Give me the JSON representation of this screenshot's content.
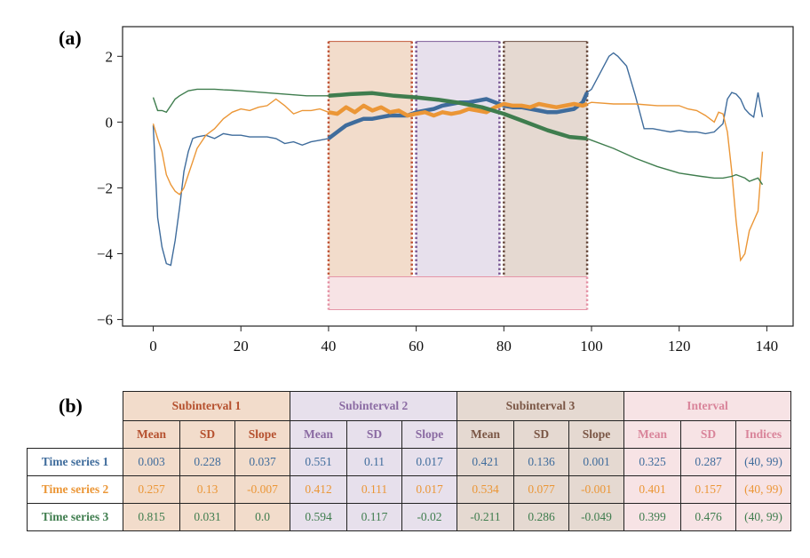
{
  "panel_a_label": "(a)",
  "panel_b_label": "(b)",
  "colors": {
    "series1": "#3f6c9c",
    "series2": "#eb9636",
    "series3": "#3f7d4e",
    "sub1_fill": "#f2dccb",
    "sub1_text": "#b5502e",
    "sub1_border": "#c0573a",
    "sub2_fill": "#e7e0ec",
    "sub2_text": "#8a6aa2",
    "sub2_border": "#7b5a96",
    "sub3_fill": "#e5d9d1",
    "sub3_text": "#7a5645",
    "sub3_border": "#6b4d40",
    "int_fill": "#f7e3e5",
    "int_text": "#d9849a",
    "int_border": "#e596a8"
  },
  "chart_data": {
    "type": "line",
    "xlim": [
      -7,
      146
    ],
    "ylim": [
      -6.2,
      2.9
    ],
    "x_ticks": [
      0,
      20,
      40,
      60,
      80,
      100,
      120,
      140
    ],
    "y_ticks": [
      2,
      0,
      -2,
      -4,
      -6
    ],
    "x_tick_labels": [
      "0",
      "20",
      "40",
      "60",
      "80",
      "100",
      "120",
      "140"
    ],
    "y_tick_labels": [
      "2",
      "0",
      "−2",
      "−4",
      "−6"
    ],
    "subintervals": [
      {
        "name": "Subinterval 1",
        "start": 40,
        "end": 59,
        "ymin": -4.7,
        "ymax": 2.45
      },
      {
        "name": "Subinterval 2",
        "start": 60,
        "end": 79,
        "ymin": -4.7,
        "ymax": 2.45
      },
      {
        "name": "Subinterval 3",
        "start": 80,
        "end": 99,
        "ymin": -4.7,
        "ymax": 2.45
      },
      {
        "name": "Interval",
        "start": 40,
        "end": 99,
        "ymin": -5.7,
        "ymax": -4.7
      }
    ],
    "highlight_range": [
      40,
      99
    ],
    "series": [
      {
        "key": "series1",
        "x": [
          0,
          1,
          2,
          3,
          4,
          5,
          6,
          7,
          8,
          9,
          10,
          12,
          14,
          16,
          18,
          20,
          22,
          24,
          26,
          28,
          30,
          32,
          34,
          36,
          38,
          40,
          42,
          44,
          46,
          48,
          50,
          52,
          54,
          56,
          58,
          60,
          62,
          64,
          66,
          68,
          70,
          72,
          74,
          76,
          78,
          80,
          82,
          84,
          86,
          88,
          90,
          92,
          94,
          96,
          98,
          99,
          100,
          102,
          104,
          105,
          106,
          108,
          110,
          112,
          114,
          116,
          118,
          120,
          122,
          124,
          126,
          128,
          130,
          131,
          132,
          133,
          134,
          135,
          136,
          137,
          138,
          139
        ],
        "y": [
          -0.1,
          -2.9,
          -3.8,
          -4.3,
          -4.35,
          -3.6,
          -2.6,
          -1.5,
          -0.9,
          -0.5,
          -0.45,
          -0.4,
          -0.5,
          -0.35,
          -0.4,
          -0.4,
          -0.45,
          -0.45,
          -0.45,
          -0.5,
          -0.65,
          -0.6,
          -0.7,
          -0.6,
          -0.55,
          -0.5,
          -0.3,
          -0.1,
          0.0,
          0.1,
          0.1,
          0.15,
          0.2,
          0.2,
          0.2,
          0.3,
          0.35,
          0.4,
          0.5,
          0.55,
          0.6,
          0.6,
          0.65,
          0.7,
          0.6,
          0.5,
          0.45,
          0.45,
          0.4,
          0.35,
          0.3,
          0.3,
          0.35,
          0.4,
          0.6,
          0.9,
          1.0,
          1.5,
          2.0,
          2.1,
          2.0,
          1.7,
          0.8,
          -0.2,
          -0.2,
          -0.25,
          -0.3,
          -0.25,
          -0.3,
          -0.3,
          -0.35,
          -0.3,
          -0.05,
          0.7,
          0.9,
          0.85,
          0.7,
          0.4,
          0.25,
          0.15,
          0.9,
          0.15
        ]
      },
      {
        "key": "series2",
        "x": [
          0,
          1,
          2,
          3,
          4,
          5,
          6,
          7,
          8,
          9,
          10,
          12,
          14,
          16,
          18,
          20,
          22,
          24,
          26,
          28,
          30,
          32,
          34,
          36,
          38,
          40,
          42,
          44,
          46,
          48,
          50,
          52,
          54,
          56,
          58,
          60,
          62,
          64,
          66,
          68,
          70,
          72,
          74,
          76,
          78,
          80,
          82,
          84,
          86,
          88,
          90,
          92,
          94,
          96,
          98,
          99,
          100,
          105,
          110,
          115,
          120,
          122,
          124,
          126,
          128,
          129,
          130,
          131,
          132,
          133,
          134,
          135,
          136,
          137,
          138,
          139
        ],
        "y": [
          -0.05,
          -0.5,
          -0.9,
          -1.6,
          -1.9,
          -2.1,
          -2.2,
          -2.0,
          -1.6,
          -1.2,
          -0.8,
          -0.4,
          -0.2,
          0.1,
          0.3,
          0.4,
          0.35,
          0.45,
          0.5,
          0.7,
          0.5,
          0.25,
          0.35,
          0.35,
          0.4,
          0.3,
          0.25,
          0.45,
          0.3,
          0.5,
          0.35,
          0.45,
          0.3,
          0.35,
          0.2,
          0.25,
          0.3,
          0.2,
          0.3,
          0.25,
          0.3,
          0.4,
          0.35,
          0.3,
          0.45,
          0.55,
          0.5,
          0.5,
          0.45,
          0.55,
          0.5,
          0.45,
          0.5,
          0.55,
          0.5,
          0.55,
          0.6,
          0.55,
          0.55,
          0.5,
          0.5,
          0.4,
          0.35,
          0.2,
          0.0,
          0.3,
          0.25,
          -0.3,
          -1.5,
          -3.0,
          -4.2,
          -4.0,
          -3.3,
          -3.0,
          -2.7,
          -0.9
        ]
      },
      {
        "key": "series3",
        "x": [
          0,
          1,
          2,
          3,
          4,
          5,
          6,
          8,
          10,
          12,
          14,
          16,
          18,
          20,
          25,
          30,
          35,
          40,
          45,
          50,
          55,
          60,
          65,
          70,
          75,
          80,
          85,
          90,
          95,
          99,
          100,
          105,
          110,
          115,
          120,
          125,
          128,
          130,
          132,
          133,
          134,
          135,
          136,
          137,
          138,
          139
        ],
        "y": [
          0.75,
          0.35,
          0.35,
          0.3,
          0.5,
          0.7,
          0.8,
          0.95,
          1.0,
          1.0,
          1.0,
          0.98,
          0.97,
          0.95,
          0.9,
          0.85,
          0.8,
          0.8,
          0.85,
          0.88,
          0.8,
          0.75,
          0.68,
          0.58,
          0.45,
          0.25,
          0.0,
          -0.25,
          -0.45,
          -0.5,
          -0.55,
          -0.8,
          -1.1,
          -1.35,
          -1.55,
          -1.65,
          -1.7,
          -1.7,
          -1.65,
          -1.6,
          -1.65,
          -1.7,
          -1.8,
          -1.75,
          -1.7,
          -1.9
        ]
      }
    ]
  },
  "table": {
    "groups": [
      "Subinterval 1",
      "Subinterval 2",
      "Subinterval 3",
      "Interval"
    ],
    "subheaders": [
      [
        "Mean",
        "SD",
        "Slope"
      ],
      [
        "Mean",
        "SD",
        "Slope"
      ],
      [
        "Mean",
        "SD",
        "Slope"
      ],
      [
        "Mean",
        "SD",
        "Indices"
      ]
    ],
    "rows": [
      {
        "label": "Time series 1",
        "values": [
          "0.003",
          "0.228",
          "0.037",
          "0.551",
          "0.11",
          "0.017",
          "0.421",
          "0.136",
          "0.001",
          "0.325",
          "0.287",
          "(40, 99)"
        ]
      },
      {
        "label": "Time series 2",
        "values": [
          "0.257",
          "0.13",
          "-0.007",
          "0.412",
          "0.111",
          "0.017",
          "0.534",
          "0.077",
          "-0.001",
          "0.401",
          "0.157",
          "(40, 99)"
        ]
      },
      {
        "label": "Time series 3",
        "values": [
          "0.815",
          "0.031",
          "0.0",
          "0.594",
          "0.117",
          "-0.02",
          "-0.211",
          "0.286",
          "-0.049",
          "0.399",
          "0.476",
          "(40, 99)"
        ]
      }
    ]
  }
}
